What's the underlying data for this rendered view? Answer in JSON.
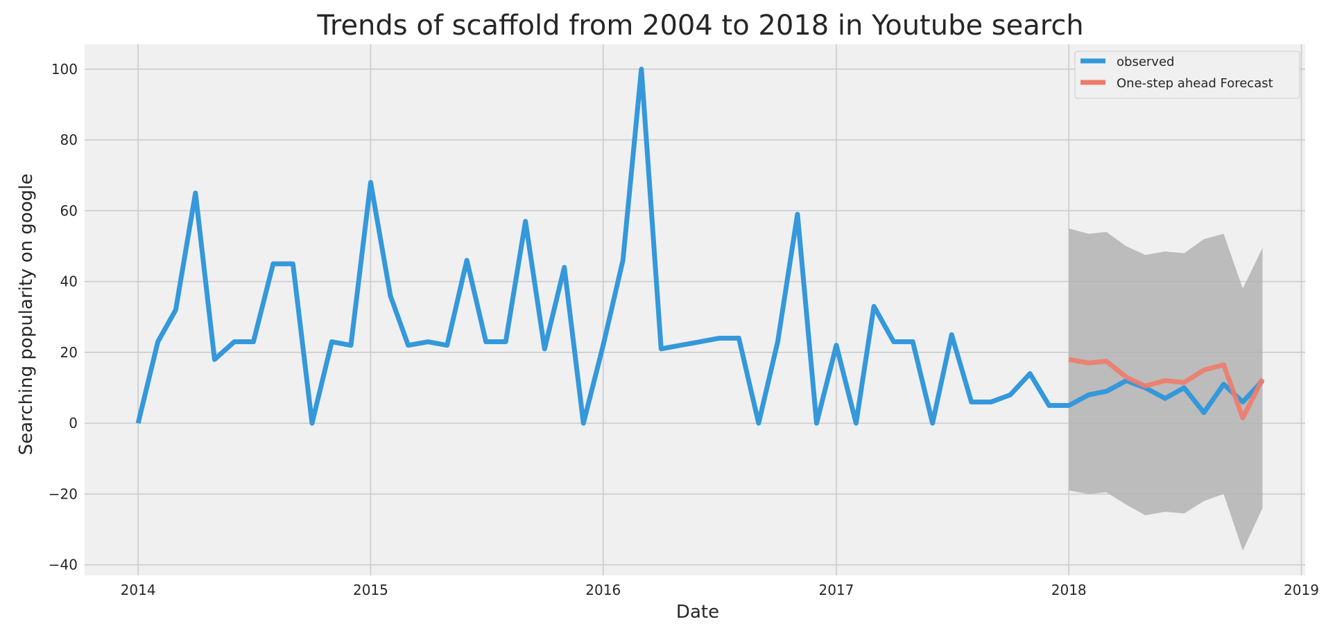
{
  "chart_data": {
    "type": "line",
    "title": "Trends of scaffold from 2004 to 2018 in Youtube search",
    "xlabel": "Date",
    "ylabel": "Searching popularity on google",
    "xlim": [
      "2013-10-09",
      "2019-01-07"
    ],
    "ylim": [
      -43,
      107
    ],
    "x_ticks": [
      "2014",
      "2015",
      "2016",
      "2017",
      "2018",
      "2019"
    ],
    "y_ticks": [
      -40,
      -20,
      0,
      20,
      40,
      60,
      80,
      100
    ],
    "y_tick_labels": [
      "−40",
      "−20",
      "0",
      "20",
      "40",
      "60",
      "80",
      "100"
    ],
    "grid": true,
    "legend_position": "top-right",
    "colors": {
      "background": "#f0f0f0",
      "grid": "#cbcbcb",
      "observed": "#3498db",
      "forecast": "#ee7b6a",
      "confidence_band": "#b3b3b3"
    },
    "series": [
      {
        "name": "observed",
        "x": [
          "2014-01",
          "2014-02",
          "2014-03",
          "2014-04",
          "2014-05",
          "2014-06",
          "2014-07",
          "2014-08",
          "2014-09",
          "2014-10",
          "2014-11",
          "2014-12",
          "2015-01",
          "2015-02",
          "2015-03",
          "2015-04",
          "2015-05",
          "2015-06",
          "2015-07",
          "2015-08",
          "2015-09",
          "2015-10",
          "2015-11",
          "2015-12",
          "2016-01",
          "2016-02",
          "2016-03",
          "2016-04",
          "2016-05",
          "2016-06",
          "2016-07",
          "2016-08",
          "2016-09",
          "2016-10",
          "2016-11",
          "2016-12",
          "2017-01",
          "2017-02",
          "2017-03",
          "2017-04",
          "2017-05",
          "2017-06",
          "2017-07",
          "2017-08",
          "2017-09",
          "2017-10",
          "2017-11",
          "2017-12",
          "2018-01",
          "2018-02",
          "2018-03",
          "2018-04",
          "2018-05",
          "2018-06",
          "2018-07",
          "2018-08",
          "2018-09",
          "2018-10",
          "2018-11"
        ],
        "y": [
          0,
          23,
          32,
          65,
          18,
          23,
          23,
          45,
          45,
          0,
          23,
          22,
          68,
          36,
          22,
          23,
          22,
          46,
          23,
          23,
          57,
          21,
          44,
          0,
          22,
          46,
          100,
          21,
          22,
          23,
          24,
          24,
          0,
          23,
          59,
          0,
          22,
          0,
          33,
          23,
          23,
          0,
          25,
          6,
          6,
          8,
          14,
          5,
          5,
          8,
          9,
          12,
          10,
          7,
          10,
          3,
          11,
          6,
          12
        ]
      },
      {
        "name": "One-step ahead Forecast",
        "x": [
          "2018-01",
          "2018-02",
          "2018-03",
          "2018-04",
          "2018-05",
          "2018-06",
          "2018-07",
          "2018-08",
          "2018-09",
          "2018-10",
          "2018-11"
        ],
        "y": [
          18,
          17,
          17.5,
          13,
          10.5,
          12,
          11.5,
          15,
          16.5,
          1.5,
          12.5
        ]
      }
    ],
    "confidence_interval": {
      "x": [
        "2018-01",
        "2018-02",
        "2018-03",
        "2018-04",
        "2018-05",
        "2018-06",
        "2018-07",
        "2018-08",
        "2018-09",
        "2018-10",
        "2018-11"
      ],
      "lower": [
        -19,
        -20,
        -19.5,
        -23,
        -26,
        -25,
        -25.5,
        -22,
        -20,
        -36,
        -24
      ],
      "upper": [
        55,
        53.5,
        54,
        50,
        47.5,
        48.5,
        48,
        52,
        53.5,
        38,
        49.5
      ]
    }
  }
}
